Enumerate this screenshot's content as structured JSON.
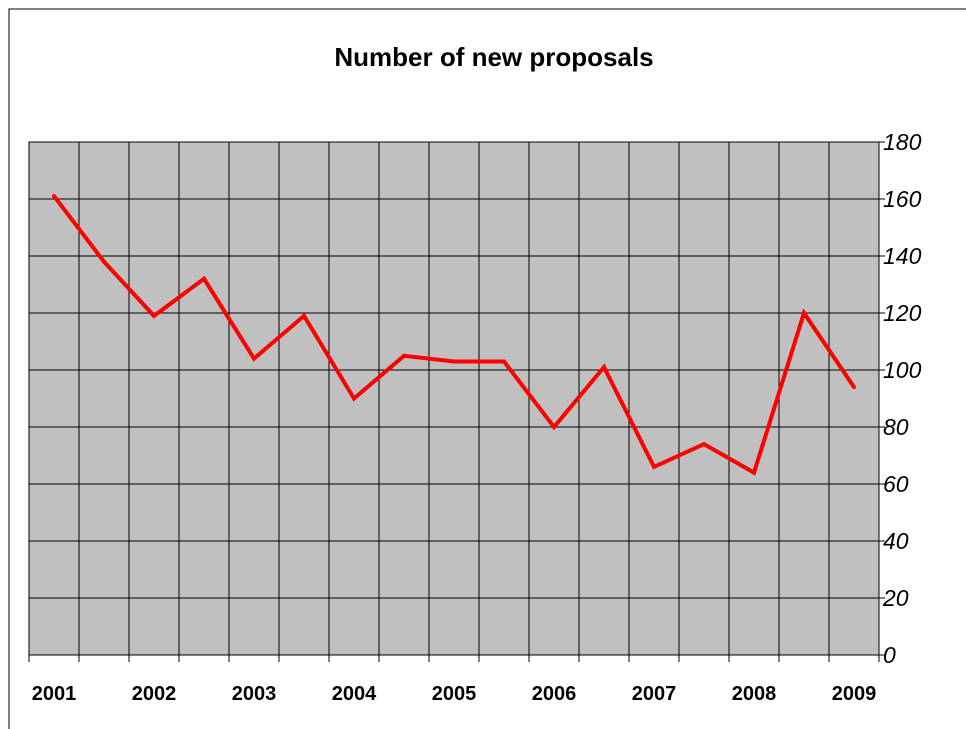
{
  "chart_data": {
    "type": "line",
    "title": "Number of new proposals",
    "xlabel": "",
    "ylabel": "",
    "ylim": [
      0,
      180
    ],
    "y_ticks": [
      "0",
      "20",
      "40",
      "60",
      "80",
      "100",
      "120",
      "140",
      "160",
      "180"
    ],
    "categories": [
      "2001",
      "2002",
      "2003",
      "2004",
      "2005",
      "2006",
      "2007",
      "2008",
      "2009"
    ],
    "x": [
      "2001 H1",
      "2001 H2",
      "2002 H1",
      "2002 H2",
      "2003 H1",
      "2003 H2",
      "2004 H1",
      "2004 H2",
      "2005 H1",
      "2005 H2",
      "2006 H1",
      "2006 H2",
      "2007 H1",
      "2007 H2",
      "2008 H1",
      "2008 H2",
      "2009 H1"
    ],
    "series": [
      {
        "values": [
          161,
          138,
          119,
          132,
          104,
          119,
          90,
          105,
          103,
          103,
          80,
          101,
          66,
          74,
          64,
          120,
          94
        ]
      }
    ],
    "grid": true,
    "legend": "none",
    "y_axis_position": "right",
    "colors": {
      "line": "#ff0000",
      "plot_background": "#c0c0c0",
      "grid": "#000000"
    }
  }
}
